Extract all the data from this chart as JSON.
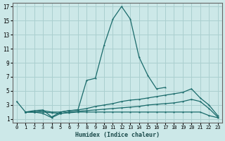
{
  "xlabel": "Humidex (Indice chaleur)",
  "bg_color": "#cce8e8",
  "grid_color": "#aacfcf",
  "line_color": "#1a6b6b",
  "xlim": [
    -0.5,
    23.5
  ],
  "ylim": [
    0.5,
    17.5
  ],
  "xticks": [
    0,
    1,
    2,
    3,
    4,
    5,
    6,
    7,
    8,
    9,
    10,
    11,
    12,
    13,
    14,
    15,
    16,
    17,
    18,
    19,
    20,
    21,
    22,
    23
  ],
  "yticks": [
    1,
    3,
    5,
    7,
    9,
    11,
    13,
    15,
    17
  ],
  "lines": [
    {
      "x": [
        0,
        1,
        2,
        3,
        4,
        5,
        6,
        7,
        8,
        9,
        10,
        11,
        12,
        13,
        14,
        15,
        16,
        17
      ],
      "y": [
        3.5,
        2.0,
        2.2,
        2.3,
        1.3,
        2.0,
        2.2,
        2.3,
        6.5,
        6.8,
        11.5,
        15.2,
        17.0,
        15.2,
        9.8,
        7.2,
        5.3,
        5.5
      ]
    },
    {
      "x": [
        1,
        2,
        3,
        4,
        5,
        6,
        7,
        8,
        9,
        10,
        11,
        12,
        13,
        14,
        15,
        16,
        17,
        18,
        19,
        20,
        21,
        22,
        23
      ],
      "y": [
        2.0,
        2.0,
        2.2,
        2.0,
        2.0,
        2.2,
        2.3,
        2.5,
        2.8,
        3.0,
        3.2,
        3.5,
        3.7,
        3.8,
        4.0,
        4.2,
        4.4,
        4.6,
        4.8,
        5.3,
        4.0,
        3.0,
        1.5
      ]
    },
    {
      "x": [
        1,
        2,
        3,
        4,
        5,
        6,
        7,
        8,
        9,
        10,
        11,
        12,
        13,
        14,
        15,
        16,
        17,
        18,
        19,
        20,
        21,
        22,
        23
      ],
      "y": [
        2.0,
        2.0,
        2.0,
        1.9,
        1.8,
        2.0,
        2.1,
        2.2,
        2.3,
        2.4,
        2.5,
        2.6,
        2.7,
        2.8,
        3.0,
        3.1,
        3.2,
        3.3,
        3.5,
        3.8,
        3.5,
        2.5,
        1.3
      ]
    },
    {
      "x": [
        1,
        2,
        3,
        4,
        5,
        6,
        7,
        8,
        9,
        10,
        11,
        12,
        13,
        14,
        15,
        16,
        17,
        18,
        19,
        20,
        21,
        22,
        23
      ],
      "y": [
        2.0,
        2.0,
        1.8,
        1.2,
        1.8,
        1.9,
        2.0,
        2.0,
        2.0,
        2.0,
        2.0,
        2.0,
        2.0,
        2.0,
        2.0,
        2.0,
        2.0,
        2.0,
        2.0,
        2.0,
        2.0,
        1.5,
        1.2
      ]
    }
  ]
}
